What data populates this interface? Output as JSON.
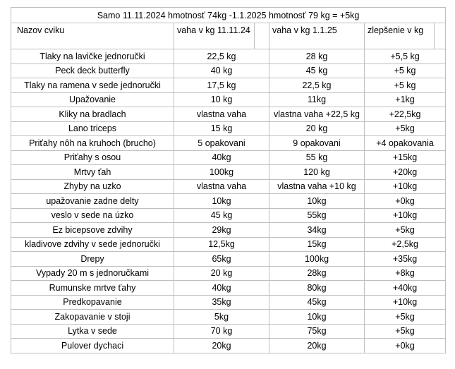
{
  "title": "Samo 11.11.2024 hmotnosť 74kg -1.1.2025 hmotnosť 79 kg  = +5kg",
  "headers": {
    "name": "Nazov cviku",
    "w1": "vaha v kg 11.11.24",
    "w2": "vaha v kg  1.1.25",
    "diff": "zlepšenie  v kg"
  },
  "rows": [
    {
      "name": "Tlaky na lavičke jednoručki",
      "w1": "22,5 kg",
      "w2": "28 kg",
      "diff": "+5,5 kg"
    },
    {
      "name": "Peck deck butterfly",
      "w1": "40 kg",
      "w2": "45 kg",
      "diff": "+5 kg"
    },
    {
      "name": "Tlaky na ramena v sede jednoručki",
      "w1": "17,5 kg",
      "w2": "22,5 kg",
      "diff": "+5 kg"
    },
    {
      "name": "Upažovanie",
      "w1": "10 kg",
      "w2": "11kg",
      "diff": "+1kg"
    },
    {
      "name": "Kliky na bradlach",
      "w1": "vlastna vaha",
      "w2": "vlastna vaha +22,5 kg",
      "diff": "+22,5kg"
    },
    {
      "name": "Lano triceps",
      "w1": "15 kg",
      "w2": "20 kg",
      "diff": "+5kg"
    },
    {
      "name": "Priťahy nôh na kruhoch (brucho)",
      "w1": "5 opakovani",
      "w2": "9 opakovani",
      "diff": "+4 opakovania"
    },
    {
      "name": "Priťahy s osou",
      "w1": "40kg",
      "w2": "55 kg",
      "diff": "+15kg"
    },
    {
      "name": "Mrtvy ťah",
      "w1": "100kg",
      "w2": "120 kg",
      "diff": "+20kg"
    },
    {
      "name": "Zhyby na uzko",
      "w1": "vlastna vaha",
      "w2": "vlastna vaha +10 kg",
      "diff": "+10kg"
    },
    {
      "name": "upažovanie zadne delty",
      "w1": "10kg",
      "w2": "10kg",
      "diff": "+0kg"
    },
    {
      "name": "veslo v sede na úzko",
      "w1": "45 kg",
      "w2": "55kg",
      "diff": "+10kg"
    },
    {
      "name": "Ez bicepsove zdvihy",
      "w1": "29kg",
      "w2": "34kg",
      "diff": "+5kg"
    },
    {
      "name": "kladivove zdvihy v sede jednoručki",
      "w1": "12,5kg",
      "w2": "15kg",
      "diff": "+2,5kg"
    },
    {
      "name": "Drepy",
      "w1": "65kg",
      "w2": "100kg",
      "diff": "+35kg"
    },
    {
      "name": "Vypady 20 m s jednoručkami",
      "w1": "20 kg",
      "w2": "28kg",
      "diff": "+8kg"
    },
    {
      "name": "Rumunske mrtve ťahy",
      "w1": "40kg",
      "w2": "80kg",
      "diff": "+40kg"
    },
    {
      "name": "Predkopavanie",
      "w1": "35kg",
      "w2": "45kg",
      "diff": "+10kg"
    },
    {
      "name": "Zakopavanie v stoji",
      "w1": "5kg",
      "w2": "10kg",
      "diff": "+5kg"
    },
    {
      "name": "Lytka v sede",
      "w1": "70 kg",
      "w2": "75kg",
      "diff": "+5kg"
    },
    {
      "name": "Pulover dychaci",
      "w1": "20kg",
      "w2": "20kg",
      "diff": "+0kg"
    }
  ]
}
